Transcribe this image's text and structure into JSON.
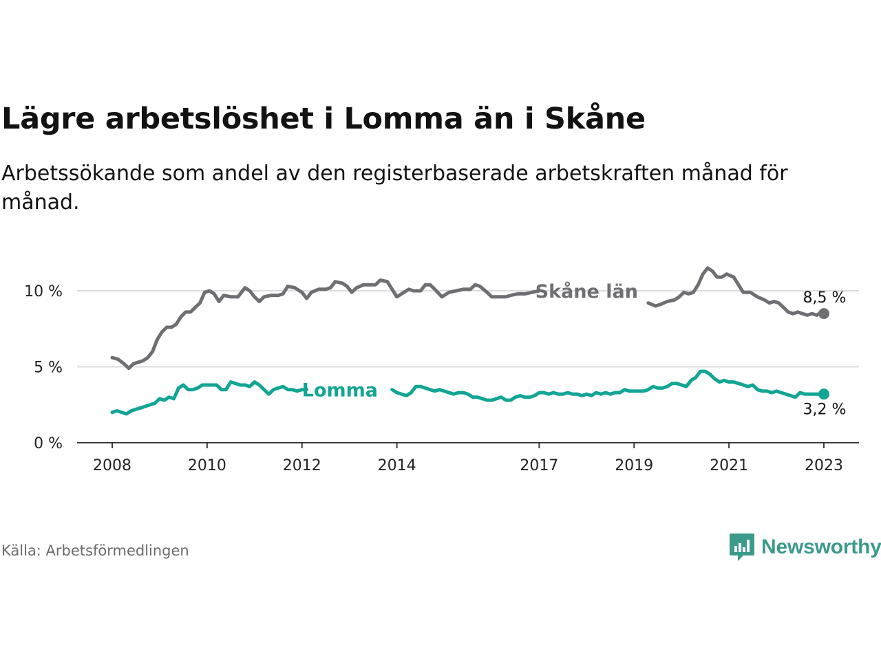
{
  "title": "Lägre arbetslöshet i Lomma än i Skåne",
  "subtitle": "Arbetssökande som andel av den registerbaserade arbetskraften månad för månad.",
  "source": "Källa: Arbetsförmedlingen",
  "brand": {
    "name": "Newsworthy",
    "color": "#3b9a8c"
  },
  "chart_data": {
    "type": "line",
    "title": "Lägre arbetslöshet i Lomma än i Skåne",
    "xlabel": "",
    "ylabel": "",
    "ylim": [
      0,
      11.5
    ],
    "xlim": [
      2008.0,
      2023.75
    ],
    "grid": true,
    "y_ticks": [
      {
        "value": 0,
        "label": "0 %"
      },
      {
        "value": 5,
        "label": "5 %"
      },
      {
        "value": 10,
        "label": "10 %"
      }
    ],
    "x_ticks": [
      {
        "value": 2008.0,
        "label": "2008"
      },
      {
        "value": 2010.0,
        "label": "2010"
      },
      {
        "value": 2012.0,
        "label": "2012"
      },
      {
        "value": 2014.0,
        "label": "2014"
      },
      {
        "value": 2017.0,
        "label": "2017"
      },
      {
        "value": 2019.0,
        "label": "2019"
      },
      {
        "value": 2021.0,
        "label": "2021"
      },
      {
        "value": 2023.0,
        "label": "2023"
      }
    ],
    "series": [
      {
        "name": "Skåne län",
        "label": "Skåne län",
        "color": "#6e6e73",
        "end_label": "8,5 %",
        "end_value": 8.5,
        "label_x": 2018.0,
        "label_y": 10.0,
        "gap": [
          2017.0,
          2019.3
        ],
        "points": [
          [
            2008.0,
            5.6
          ],
          [
            2008.12,
            5.5
          ],
          [
            2008.25,
            5.2
          ],
          [
            2008.35,
            4.9
          ],
          [
            2008.45,
            5.2
          ],
          [
            2008.55,
            5.3
          ],
          [
            2008.65,
            5.4
          ],
          [
            2008.75,
            5.6
          ],
          [
            2008.85,
            6.0
          ],
          [
            2008.95,
            6.8
          ],
          [
            2009.05,
            7.3
          ],
          [
            2009.15,
            7.6
          ],
          [
            2009.25,
            7.6
          ],
          [
            2009.35,
            7.8
          ],
          [
            2009.45,
            8.3
          ],
          [
            2009.55,
            8.6
          ],
          [
            2009.65,
            8.6
          ],
          [
            2009.75,
            8.9
          ],
          [
            2009.85,
            9.2
          ],
          [
            2009.95,
            9.9
          ],
          [
            2010.05,
            10.0
          ],
          [
            2010.15,
            9.8
          ],
          [
            2010.25,
            9.3
          ],
          [
            2010.35,
            9.7
          ],
          [
            2010.5,
            9.6
          ],
          [
            2010.65,
            9.6
          ],
          [
            2010.8,
            10.2
          ],
          [
            2010.9,
            10.0
          ],
          [
            2011.0,
            9.6
          ],
          [
            2011.1,
            9.3
          ],
          [
            2011.2,
            9.6
          ],
          [
            2011.35,
            9.7
          ],
          [
            2011.5,
            9.7
          ],
          [
            2011.6,
            9.8
          ],
          [
            2011.7,
            10.3
          ],
          [
            2011.85,
            10.2
          ],
          [
            2012.0,
            9.9
          ],
          [
            2012.1,
            9.5
          ],
          [
            2012.2,
            9.9
          ],
          [
            2012.35,
            10.1
          ],
          [
            2012.5,
            10.1
          ],
          [
            2012.6,
            10.2
          ],
          [
            2012.7,
            10.6
          ],
          [
            2012.85,
            10.5
          ],
          [
            2012.95,
            10.3
          ],
          [
            2013.05,
            9.9
          ],
          [
            2013.15,
            10.2
          ],
          [
            2013.3,
            10.4
          ],
          [
            2013.45,
            10.4
          ],
          [
            2013.55,
            10.4
          ],
          [
            2013.65,
            10.7
          ],
          [
            2013.8,
            10.6
          ],
          [
            2013.9,
            10.1
          ],
          [
            2014.0,
            9.6
          ],
          [
            2014.1,
            9.8
          ],
          [
            2014.25,
            10.1
          ],
          [
            2014.35,
            10.0
          ],
          [
            2014.5,
            10.0
          ],
          [
            2014.6,
            10.4
          ],
          [
            2014.7,
            10.4
          ],
          [
            2014.8,
            10.1
          ],
          [
            2014.95,
            9.6
          ],
          [
            2015.1,
            9.9
          ],
          [
            2015.25,
            10.0
          ],
          [
            2015.4,
            10.1
          ],
          [
            2015.55,
            10.1
          ],
          [
            2015.65,
            10.4
          ],
          [
            2015.75,
            10.3
          ],
          [
            2015.9,
            9.9
          ],
          [
            2016.0,
            9.6
          ],
          [
            2016.15,
            9.6
          ],
          [
            2016.3,
            9.6
          ],
          [
            2016.4,
            9.7
          ],
          [
            2016.55,
            9.8
          ],
          [
            2016.7,
            9.8
          ],
          [
            2016.85,
            9.9
          ],
          [
            2017.0,
            10.0
          ],
          [
            2019.3,
            9.2
          ],
          [
            2019.45,
            9.0
          ],
          [
            2019.55,
            9.1
          ],
          [
            2019.7,
            9.3
          ],
          [
            2019.85,
            9.4
          ],
          [
            2019.95,
            9.6
          ],
          [
            2020.05,
            9.9
          ],
          [
            2020.15,
            9.8
          ],
          [
            2020.25,
            9.9
          ],
          [
            2020.35,
            10.4
          ],
          [
            2020.45,
            11.1
          ],
          [
            2020.55,
            11.5
          ],
          [
            2020.65,
            11.3
          ],
          [
            2020.75,
            10.9
          ],
          [
            2020.85,
            10.9
          ],
          [
            2020.95,
            11.1
          ],
          [
            2021.1,
            10.9
          ],
          [
            2021.2,
            10.4
          ],
          [
            2021.3,
            9.9
          ],
          [
            2021.45,
            9.9
          ],
          [
            2021.6,
            9.6
          ],
          [
            2021.75,
            9.4
          ],
          [
            2021.85,
            9.2
          ],
          [
            2021.95,
            9.3
          ],
          [
            2022.05,
            9.2
          ],
          [
            2022.15,
            8.9
          ],
          [
            2022.25,
            8.6
          ],
          [
            2022.35,
            8.5
          ],
          [
            2022.45,
            8.6
          ],
          [
            2022.55,
            8.5
          ],
          [
            2022.65,
            8.4
          ],
          [
            2022.75,
            8.5
          ],
          [
            2022.85,
            8.4
          ],
          [
            2022.95,
            8.6
          ],
          [
            2023.0,
            8.5
          ]
        ]
      },
      {
        "name": "Lomma",
        "label": "Lomma",
        "color": "#12a594",
        "end_label": "3,2 %",
        "end_value": 3.2,
        "label_x": 2012.8,
        "label_y": 3.5,
        "gap": [
          2012.1,
          2013.9
        ],
        "points": [
          [
            2008.0,
            2.0
          ],
          [
            2008.1,
            2.1
          ],
          [
            2008.2,
            2.0
          ],
          [
            2008.3,
            1.9
          ],
          [
            2008.4,
            2.1
          ],
          [
            2008.5,
            2.2
          ],
          [
            2008.6,
            2.3
          ],
          [
            2008.7,
            2.4
          ],
          [
            2008.8,
            2.5
          ],
          [
            2008.9,
            2.6
          ],
          [
            2009.0,
            2.9
          ],
          [
            2009.1,
            2.8
          ],
          [
            2009.2,
            3.0
          ],
          [
            2009.3,
            2.9
          ],
          [
            2009.4,
            3.6
          ],
          [
            2009.5,
            3.8
          ],
          [
            2009.6,
            3.5
          ],
          [
            2009.7,
            3.5
          ],
          [
            2009.8,
            3.6
          ],
          [
            2009.9,
            3.8
          ],
          [
            2010.0,
            3.8
          ],
          [
            2010.1,
            3.8
          ],
          [
            2010.2,
            3.8
          ],
          [
            2010.3,
            3.5
          ],
          [
            2010.4,
            3.5
          ],
          [
            2010.5,
            4.0
          ],
          [
            2010.6,
            3.9
          ],
          [
            2010.7,
            3.8
          ],
          [
            2010.8,
            3.8
          ],
          [
            2010.9,
            3.7
          ],
          [
            2011.0,
            4.0
          ],
          [
            2011.1,
            3.8
          ],
          [
            2011.2,
            3.5
          ],
          [
            2011.3,
            3.2
          ],
          [
            2011.4,
            3.5
          ],
          [
            2011.5,
            3.6
          ],
          [
            2011.6,
            3.7
          ],
          [
            2011.7,
            3.5
          ],
          [
            2011.8,
            3.5
          ],
          [
            2011.9,
            3.4
          ],
          [
            2012.0,
            3.5
          ],
          [
            2012.1,
            3.5
          ],
          [
            2013.9,
            3.5
          ],
          [
            2014.0,
            3.3
          ],
          [
            2014.1,
            3.2
          ],
          [
            2014.2,
            3.1
          ],
          [
            2014.3,
            3.3
          ],
          [
            2014.4,
            3.7
          ],
          [
            2014.5,
            3.7
          ],
          [
            2014.6,
            3.6
          ],
          [
            2014.7,
            3.5
          ],
          [
            2014.8,
            3.4
          ],
          [
            2014.9,
            3.5
          ],
          [
            2015.0,
            3.4
          ],
          [
            2015.1,
            3.3
          ],
          [
            2015.2,
            3.2
          ],
          [
            2015.3,
            3.3
          ],
          [
            2015.4,
            3.3
          ],
          [
            2015.5,
            3.2
          ],
          [
            2015.6,
            3.0
          ],
          [
            2015.7,
            3.0
          ],
          [
            2015.8,
            2.9
          ],
          [
            2015.9,
            2.8
          ],
          [
            2016.0,
            2.8
          ],
          [
            2016.1,
            2.9
          ],
          [
            2016.2,
            3.0
          ],
          [
            2016.3,
            2.8
          ],
          [
            2016.4,
            2.8
          ],
          [
            2016.5,
            3.0
          ],
          [
            2016.6,
            3.1
          ],
          [
            2016.7,
            3.0
          ],
          [
            2016.8,
            3.0
          ],
          [
            2016.9,
            3.1
          ],
          [
            2017.0,
            3.3
          ],
          [
            2017.1,
            3.3
          ],
          [
            2017.2,
            3.2
          ],
          [
            2017.3,
            3.3
          ],
          [
            2017.4,
            3.2
          ],
          [
            2017.5,
            3.2
          ],
          [
            2017.6,
            3.3
          ],
          [
            2017.7,
            3.2
          ],
          [
            2017.8,
            3.2
          ],
          [
            2017.9,
            3.1
          ],
          [
            2018.0,
            3.2
          ],
          [
            2018.1,
            3.1
          ],
          [
            2018.2,
            3.3
          ],
          [
            2018.3,
            3.2
          ],
          [
            2018.4,
            3.3
          ],
          [
            2018.5,
            3.2
          ],
          [
            2018.6,
            3.3
          ],
          [
            2018.7,
            3.3
          ],
          [
            2018.8,
            3.5
          ],
          [
            2018.9,
            3.4
          ],
          [
            2019.0,
            3.4
          ],
          [
            2019.1,
            3.4
          ],
          [
            2019.2,
            3.4
          ],
          [
            2019.3,
            3.5
          ],
          [
            2019.4,
            3.7
          ],
          [
            2019.5,
            3.6
          ],
          [
            2019.6,
            3.6
          ],
          [
            2019.7,
            3.7
          ],
          [
            2019.8,
            3.9
          ],
          [
            2019.9,
            3.9
          ],
          [
            2020.0,
            3.8
          ],
          [
            2020.1,
            3.7
          ],
          [
            2020.2,
            4.1
          ],
          [
            2020.3,
            4.3
          ],
          [
            2020.4,
            4.7
          ],
          [
            2020.5,
            4.7
          ],
          [
            2020.6,
            4.5
          ],
          [
            2020.7,
            4.2
          ],
          [
            2020.8,
            4.0
          ],
          [
            2020.9,
            4.1
          ],
          [
            2021.0,
            4.0
          ],
          [
            2021.1,
            4.0
          ],
          [
            2021.2,
            3.9
          ],
          [
            2021.3,
            3.8
          ],
          [
            2021.4,
            3.7
          ],
          [
            2021.5,
            3.8
          ],
          [
            2021.6,
            3.5
          ],
          [
            2021.7,
            3.4
          ],
          [
            2021.8,
            3.4
          ],
          [
            2021.9,
            3.3
          ],
          [
            2022.0,
            3.4
          ],
          [
            2022.1,
            3.3
          ],
          [
            2022.2,
            3.2
          ],
          [
            2022.3,
            3.1
          ],
          [
            2022.4,
            3.0
          ],
          [
            2022.5,
            3.3
          ],
          [
            2022.6,
            3.2
          ],
          [
            2022.7,
            3.2
          ],
          [
            2022.8,
            3.2
          ],
          [
            2022.9,
            3.2
          ],
          [
            2023.0,
            3.2
          ]
        ]
      }
    ]
  }
}
